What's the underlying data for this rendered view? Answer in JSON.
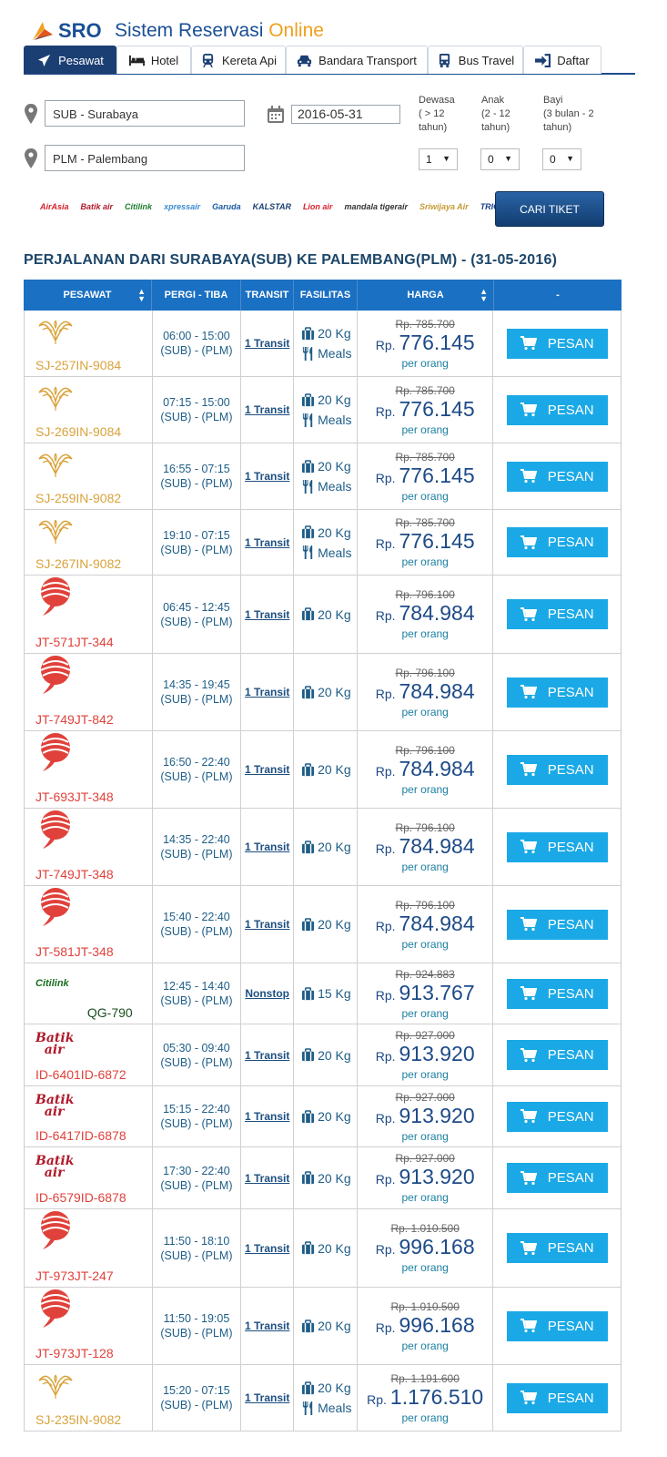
{
  "header": {
    "brand": "SRO",
    "title_main": "Sistem Reservasi ",
    "title_accent": "Online"
  },
  "tabs": [
    {
      "label": "Pesawat",
      "icon": "plane-icon",
      "active": true
    },
    {
      "label": "Hotel",
      "icon": "bed-icon"
    },
    {
      "label": "Kereta Api",
      "icon": "train-icon"
    },
    {
      "label": "Bandara Transport",
      "icon": "car-icon"
    },
    {
      "label": "Bus Travel",
      "icon": "bus-icon"
    },
    {
      "label": "Daftar",
      "icon": "sign-in-icon"
    }
  ],
  "search": {
    "origin": "SUB - Surabaya",
    "destination": "PLM - Palembang",
    "date": "2016-05-31",
    "adult_label": [
      "Dewasa",
      "( > 12",
      "tahun)"
    ],
    "child_label": [
      "Anak",
      "(2 - 12",
      "tahun)"
    ],
    "infant_label": [
      "Bayi",
      "(3 bulan - 2",
      "tahun)"
    ],
    "adult": "1",
    "child": "0",
    "infant": "0",
    "button": "CARI TIKET"
  },
  "airline_logos": [
    {
      "name": "AirAsia",
      "color": "#d6202b"
    },
    {
      "name": "Batik air",
      "color": "#b0192a"
    },
    {
      "name": "Citilink",
      "color": "#1b7f2b"
    },
    {
      "name": "xpressair",
      "color": "#3b8bd0"
    },
    {
      "name": "Garuda",
      "color": "#1b5aa0"
    },
    {
      "name": "KALSTAR",
      "color": "#1c3f73"
    },
    {
      "name": "Lion air",
      "color": "#d6202b"
    },
    {
      "name": "mandala tigerair",
      "color": "#333"
    },
    {
      "name": "Sriwijaya Air",
      "color": "#c59a33"
    },
    {
      "name": "TRIGANA AIR",
      "color": "#1b3f8a"
    }
  ],
  "results_title": "PERJALANAN DARI SURABAYA(SUB) KE PALEMBANG(PLM) - (31-05-2016)",
  "table_headers": {
    "pesawat": "PESAWAT",
    "pergi": "PERGI - TIBA",
    "transit": "TRANSIT",
    "fasilitas": "FASILITAS",
    "harga": "HARGA",
    "aksi": "-"
  },
  "common": {
    "route": "(SUB) - (PLM)",
    "rp": "Rp.",
    "per": "per orang",
    "pesan": "PESAN",
    "meals": "Meals"
  },
  "rows": [
    {
      "airline": "sriwijaya",
      "code": "SJ-257IN-9084",
      "time": "06:00 - 15:00",
      "transit": "1 Transit",
      "bag": "20 Kg",
      "meals": true,
      "old": "Rp. 785.700",
      "price": "776.145"
    },
    {
      "airline": "sriwijaya",
      "code": "SJ-269IN-9084",
      "time": "07:15 - 15:00",
      "transit": "1 Transit",
      "bag": "20 Kg",
      "meals": true,
      "old": "Rp. 785.700",
      "price": "776.145"
    },
    {
      "airline": "sriwijaya",
      "code": "SJ-259IN-9082",
      "time": "16:55 - 07:15",
      "transit": "1 Transit",
      "bag": "20 Kg",
      "meals": true,
      "old": "Rp. 785.700",
      "price": "776.145"
    },
    {
      "airline": "sriwijaya",
      "code": "SJ-267IN-9082",
      "time": "19:10 - 07:15",
      "transit": "1 Transit",
      "bag": "20 Kg",
      "meals": true,
      "old": "Rp. 785.700",
      "price": "776.145"
    },
    {
      "airline": "lion",
      "code": "JT-571JT-344",
      "time": "06:45 - 12:45",
      "transit": "1 Transit",
      "bag": "20 Kg",
      "meals": false,
      "old": "Rp. 796.100",
      "price": "784.984"
    },
    {
      "airline": "lion",
      "code": "JT-749JT-842",
      "time": "14:35 - 19:45",
      "transit": "1 Transit",
      "bag": "20 Kg",
      "meals": false,
      "old": "Rp. 796.100",
      "price": "784.984"
    },
    {
      "airline": "lion",
      "code": "JT-693JT-348",
      "time": "16:50 - 22:40",
      "transit": "1 Transit",
      "bag": "20 Kg",
      "meals": false,
      "old": "Rp. 796.100",
      "price": "784.984"
    },
    {
      "airline": "lion",
      "code": "JT-749JT-348",
      "time": "14:35 - 22:40",
      "transit": "1 Transit",
      "bag": "20 Kg",
      "meals": false,
      "old": "Rp. 796.100",
      "price": "784.984"
    },
    {
      "airline": "lion",
      "code": "JT-581JT-348",
      "time": "15:40 - 22:40",
      "transit": "1 Transit",
      "bag": "20 Kg",
      "meals": false,
      "old": "Rp. 796.100",
      "price": "784.984"
    },
    {
      "airline": "citilink",
      "code": "QG-790",
      "time": "12:45 - 14:40",
      "transit": "Nonstop",
      "bag": "15 Kg",
      "meals": false,
      "old": "Rp. 924.883",
      "price": "913.767"
    },
    {
      "airline": "batik",
      "code": "ID-6401ID-6872",
      "time": "05:30 - 09:40",
      "transit": "1 Transit",
      "bag": "20 Kg",
      "meals": false,
      "old": "Rp. 927.000",
      "price": "913.920"
    },
    {
      "airline": "batik",
      "code": "ID-6417ID-6878",
      "time": "15:15 - 22:40",
      "transit": "1 Transit",
      "bag": "20 Kg",
      "meals": false,
      "old": "Rp. 927.000",
      "price": "913.920"
    },
    {
      "airline": "batik",
      "code": "ID-6579ID-6878",
      "time": "17:30 - 22:40",
      "transit": "1 Transit",
      "bag": "20 Kg",
      "meals": false,
      "old": "Rp. 927.000",
      "price": "913.920"
    },
    {
      "airline": "lion",
      "code": "JT-973JT-247",
      "time": "11:50 - 18:10",
      "transit": "1 Transit",
      "bag": "20 Kg",
      "meals": false,
      "old": "Rp. 1.010.500",
      "price": "996.168"
    },
    {
      "airline": "lion",
      "code": "JT-973JT-128",
      "time": "11:50 - 19:05",
      "transit": "1 Transit",
      "bag": "20 Kg",
      "meals": false,
      "old": "Rp. 1.010.500",
      "price": "996.168"
    },
    {
      "airline": "sriwijaya",
      "code": "SJ-235IN-9082",
      "time": "15:20 - 07:15",
      "transit": "1 Transit",
      "bag": "20 Kg",
      "meals": true,
      "old": "Rp. 1.191.600",
      "price": "1.176.510"
    }
  ],
  "colors": {
    "sriwijaya": "#d9a33c",
    "lion": "#e0413a",
    "batik": "#e0413a",
    "citilink": "#1b6e20",
    "accent": "#1aa9e6"
  }
}
